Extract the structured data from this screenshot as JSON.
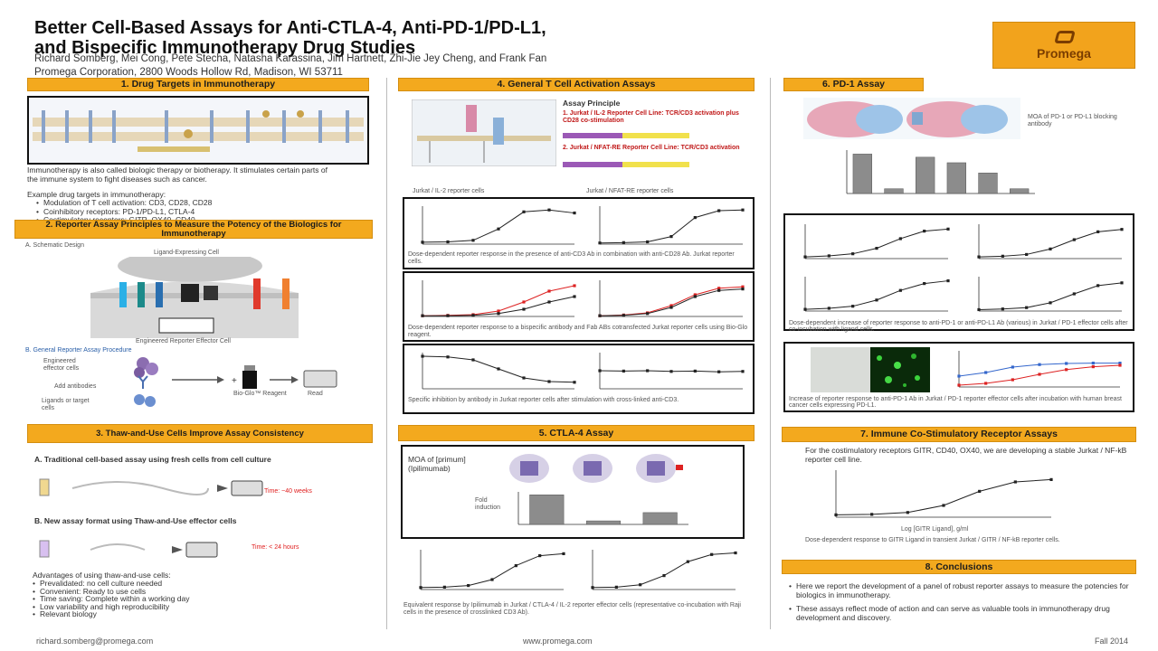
{
  "poster": {
    "title_line1": "Better Cell-Based Assays for Anti-CTLA-4, Anti-PD-1/PD-L1,",
    "title_line2": "and Bispecific Immunotherapy Drug Studies",
    "authors": "Richard Somberg, Mei Cong, Pete Stecha, Natasha Karassina, Jim Hartnett, Zhi-Jie Jey Cheng, and Frank Fan",
    "affiliation": "Promega Corporation, 2800 Woods Hollow Rd, Madison, WI 53711",
    "logo_text": "Promega",
    "footer_email": "richard.somberg@promega.com",
    "footer_url": "www.promega.com",
    "footer_date": "Fall 2014"
  },
  "sections": {
    "s1": {
      "header": "1. Drug Targets in Immunotherapy",
      "intro": "Immunotherapy is also called biologic therapy or biotherapy. It stimulates certain parts of the immune system to fight diseases such as cancer.",
      "examples_title": "Example drug targets in immunotherapy:",
      "bullets": [
        "Modulation of T cell activation: CD3, CD28, CD28",
        "Coinhibitory receptors: PD-1/PD-L1, CTLA-4",
        "Costimulatory receptors: GITR, OX40, CD40"
      ]
    },
    "s2": {
      "header": "2. Reporter Assay Principles to Measure the Potency of the Biologics for Immunotherapy",
      "sub_a": "A. Schematic Design",
      "ligand_label": "Ligand-Expressing Cell",
      "engineered_label": "Engineered Reporter Effector Cell",
      "sub_b": "B. General Reporter Assay Procedure",
      "proc_label1": "Engineered effector cells",
      "proc_label2": "Add antibodies",
      "proc_label3": "Ligands or target cells",
      "reagent_label": "Bio-Glo™ Reagent",
      "read_label": "Read"
    },
    "s3": {
      "header": "3. Thaw-and-Use Cells Improve Assay Consistency",
      "sub_a": "A. Traditional cell-based assay using fresh cells from cell culture",
      "time_a": "Time: ~40 weeks",
      "sub_b": "B. New assay format using Thaw-and-Use effector cells",
      "time_b": "Time: < 24 hours",
      "adv_title": "Advantages of using thaw-and-use cells:",
      "adv": [
        "Prevalidated: no cell culture needed",
        "Convenient: Ready to use cells",
        "Time saving: Complete within a working day",
        "Low variability and high reproducibility",
        "Relevant biology"
      ]
    },
    "s4": {
      "header": "4. General T Cell Activation Assays",
      "principle_title": "Assay Principle",
      "item1": "1. Jurkat / IL-2 Reporter Cell Line: TCR/CD3 activation plus CD28 co-stimulation",
      "item2": "2. Jurkat / NFAT-RE Reporter Cell Line: TCR/CD3 activation",
      "panel_left": "Jurkat / IL-2 reporter cells",
      "panel_right": "Jurkat / NFAT-RE reporter cells",
      "cap1": "Dose-dependent reporter response in the presence of anti-CD3 Ab in combination with anti-CD28 Ab. Jurkat reporter cells.",
      "cap2": "Dose-dependent reporter response to a bispecific antibody and Fab ABs cotransfected Jurkat reporter cells using Bio-Glo reagent.",
      "cap3": "Specific inhibition by antibody in Jurkat reporter cells after stimulation with cross-linked anti-CD3."
    },
    "s5": {
      "header": "5. CTLA-4 Assay",
      "moa_label": "MOA of [primum] (Ipilimumab)",
      "bar_label": "Fold induction",
      "caption": "Equivalent response by Ipilimumab in Jurkat / CTLA-4 / IL-2 reporter effector cells (representative co-incubation with Raji cells in the presence of crosslinked CD3 Ab)."
    },
    "s6": {
      "header": "6. PD-1 Assay",
      "mech_label": "MOA of PD-1 or PD-L1 blocking antibody",
      "caption1": "Dose-dependent increase of reporter response to anti-PD-1 or anti-PD-L1 Ab (various) in Jurkat / PD-1 effector cells after co-incubation with ligand cells.",
      "caption2": "Increase of reporter response to anti-PD-1 Ab in Jurkat / PD-1 reporter effector cells after incubation with human breast cancer cells expressing PD-L1."
    },
    "s7": {
      "header": "7. Immune Co-Stimulatory Receptor Assays",
      "text": "For the costimulatory receptors GITR, CD40, OX40, we are developing a stable Jurkat / NF-kB reporter cell line.",
      "xlabel": "Log [GITR Ligand], g/ml",
      "caption": "Dose-dependent response to GITR Ligand in transient Jurkat / GITR / NF-kB reporter cells."
    },
    "s8": {
      "header": "8. Conclusions",
      "bullets": [
        "Here we report the development of a panel of robust reporter assays to measure the potencies for biologics in immunotherapy.",
        "These assays reflect mode of action and can serve as valuable tools in immunotherapy drug development and discovery."
      ]
    }
  },
  "chart_data": [
    {
      "type": "line",
      "id": "s4-il2",
      "x": [
        -3,
        -2,
        -1,
        0,
        1,
        2,
        3
      ],
      "y": [
        5,
        6,
        10,
        40,
        85,
        90,
        82
      ],
      "title": "",
      "xlabel": "",
      "ylabel": ""
    },
    {
      "type": "line",
      "id": "s4-nfat",
      "x": [
        -3,
        -2,
        -1,
        0,
        1,
        2,
        3
      ],
      "y": [
        3,
        4,
        6,
        20,
        70,
        88,
        90
      ],
      "title": "",
      "xlabel": "",
      "ylabel": ""
    },
    {
      "type": "line",
      "id": "s4-bsp1",
      "x": [
        -3,
        -2,
        -1,
        0,
        1,
        2,
        3
      ],
      "series": [
        {
          "values": [
            2,
            3,
            5,
            15,
            40,
            70,
            85
          ],
          "color": "#d22"
        },
        {
          "values": [
            2,
            2,
            3,
            8,
            20,
            40,
            55
          ],
          "color": "#222"
        }
      ]
    },
    {
      "type": "line",
      "id": "s4-bsp2",
      "x": [
        -3,
        -2,
        -1,
        0,
        1,
        2,
        3
      ],
      "series": [
        {
          "values": [
            2,
            4,
            10,
            30,
            60,
            78,
            82
          ],
          "color": "#d22"
        },
        {
          "values": [
            2,
            3,
            8,
            25,
            55,
            72,
            76
          ],
          "color": "#222"
        }
      ]
    },
    {
      "type": "line",
      "id": "s4-inh",
      "x": [
        -3,
        -2,
        -1,
        0,
        1,
        2,
        3
      ],
      "y": [
        90,
        88,
        80,
        55,
        30,
        20,
        18
      ]
    },
    {
      "type": "line",
      "id": "s4-flat",
      "x": [
        -3,
        -2,
        -1,
        0,
        1,
        2,
        3
      ],
      "y": [
        50,
        49,
        50,
        48,
        49,
        47,
        48
      ]
    },
    {
      "type": "bar",
      "id": "s5-bar",
      "values": [
        100,
        12,
        40
      ],
      "title": "",
      "ylabel": ""
    },
    {
      "type": "line",
      "id": "s5-c1",
      "x": [
        -3,
        -2,
        -1,
        0,
        1,
        2,
        3
      ],
      "y": [
        5,
        6,
        10,
        25,
        60,
        85,
        90
      ]
    },
    {
      "type": "line",
      "id": "s5-c2",
      "x": [
        -3,
        -2,
        -1,
        0,
        1,
        2,
        3
      ],
      "y": [
        5,
        6,
        12,
        35,
        70,
        88,
        92
      ]
    },
    {
      "type": "bar",
      "id": "s6-bar",
      "values": [
        100,
        12,
        92,
        78,
        52,
        12
      ]
    },
    {
      "type": "line",
      "id": "s6-c1",
      "x": [
        -3,
        -2,
        -1,
        0,
        1,
        2,
        3
      ],
      "y": [
        5,
        8,
        14,
        30,
        58,
        80,
        86
      ]
    },
    {
      "type": "line",
      "id": "s6-c2",
      "x": [
        -3,
        -2,
        -1,
        0,
        1,
        2,
        3
      ],
      "y": [
        5,
        7,
        12,
        28,
        55,
        78,
        85
      ]
    },
    {
      "type": "line",
      "id": "s6-c3",
      "x": [
        -3,
        -2,
        -1,
        0,
        1,
        2,
        3
      ],
      "y": [
        5,
        8,
        14,
        32,
        60,
        80,
        88
      ]
    },
    {
      "type": "line",
      "id": "s6-c4",
      "x": [
        -3,
        -2,
        -1,
        0,
        1,
        2,
        3
      ],
      "y": [
        4,
        6,
        10,
        24,
        50,
        74,
        82
      ]
    },
    {
      "type": "line",
      "id": "s6-c5",
      "x": [
        -3,
        -2,
        -1,
        0,
        1,
        2,
        3
      ],
      "series": [
        {
          "values": [
            30,
            40,
            55,
            62,
            65,
            66,
            66
          ],
          "color": "#36c"
        },
        {
          "values": [
            5,
            10,
            20,
            35,
            48,
            56,
            60
          ],
          "color": "#d22"
        }
      ]
    },
    {
      "type": "line",
      "id": "s7-c",
      "x": [
        -3,
        -2,
        -1,
        0,
        1,
        2,
        3
      ],
      "y": [
        5,
        6,
        10,
        25,
        55,
        75,
        80
      ],
      "xlabel": "Log [GITR Ligand], g/ml"
    }
  ]
}
